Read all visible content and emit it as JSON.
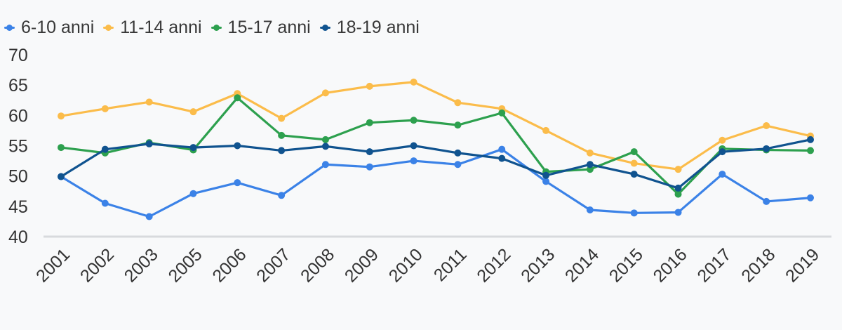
{
  "legend": {
    "items": [
      {
        "label": "6-10 anni"
      },
      {
        "label": "11-14 anni"
      },
      {
        "label": "15-17 anni"
      },
      {
        "label": "18-19 anni"
      }
    ]
  },
  "chart_data": {
    "type": "line",
    "title": "",
    "xlabel": "",
    "ylabel": "",
    "categories": [
      "2001",
      "2002",
      "2003",
      "2005",
      "2006",
      "2007",
      "2008",
      "2009",
      "2010",
      "2011",
      "2012",
      "2013",
      "2014",
      "2015",
      "2016",
      "2017",
      "2018",
      "2019"
    ],
    "series": [
      {
        "name": "6-10 anni",
        "color": "#3b82e7",
        "values": [
          49.9,
          45.5,
          43.3,
          47.1,
          48.9,
          46.8,
          51.9,
          51.5,
          52.5,
          51.9,
          54.4,
          49.1,
          44.4,
          43.9,
          44.0,
          50.3,
          45.8,
          46.4
        ]
      },
      {
        "name": "11-14 anni",
        "color": "#fbbc4a",
        "values": [
          59.9,
          61.1,
          62.2,
          60.6,
          63.6,
          59.5,
          63.7,
          64.8,
          65.5,
          62.1,
          61.1,
          57.5,
          53.8,
          52.1,
          51.1,
          55.9,
          58.3,
          56.6
        ]
      },
      {
        "name": "15-17 anni",
        "color": "#2da04e",
        "values": [
          54.7,
          53.8,
          55.5,
          54.3,
          62.9,
          56.7,
          56.0,
          58.8,
          59.2,
          58.4,
          60.4,
          50.7,
          51.1,
          54.0,
          47.0,
          54.5,
          54.3,
          54.2
        ]
      },
      {
        "name": "18-19 anni",
        "color": "#10538f",
        "values": [
          49.9,
          54.4,
          55.3,
          54.7,
          55.0,
          54.2,
          54.9,
          54.0,
          55.0,
          53.8,
          52.9,
          50.1,
          51.9,
          50.3,
          48.0,
          54.0,
          54.5,
          56.0
        ]
      }
    ],
    "ylim": [
      40,
      70
    ],
    "yticks": [
      40,
      45,
      50,
      55,
      60,
      65,
      70
    ],
    "grid": "baseline-only",
    "legend_position": "top-left"
  },
  "styles": {
    "background": "#f8f9fa",
    "axis_text_color": "#333333",
    "legend_text_color": "#383838",
    "baseline_color": "#d8dadd"
  }
}
